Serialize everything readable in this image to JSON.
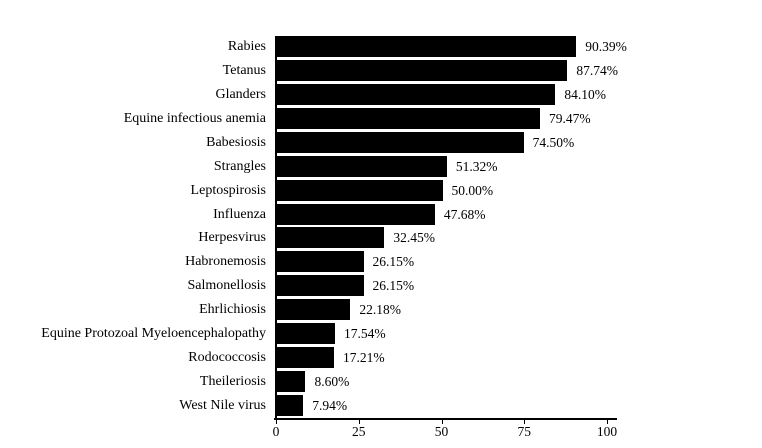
{
  "chart_data": {
    "type": "bar",
    "orientation": "horizontal",
    "title": "",
    "xlabel": "",
    "ylabel": "",
    "xlim": [
      0,
      100
    ],
    "x_ticks": [
      "0",
      "25",
      "50",
      "75",
      "100"
    ],
    "x_tick_values": [
      0,
      25,
      50,
      75,
      100
    ],
    "grid": false,
    "legend": false,
    "bar_color": "#000000",
    "background_color": "#ffffff",
    "text_color": "#000000",
    "categories": [
      "Rabies",
      "Tetanus",
      "Glanders",
      "Equine infectious anemia",
      "Babesiosis",
      "Strangles",
      "Leptospirosis",
      "Influenza",
      "Herpesvirus",
      "Habronemosis",
      "Salmonellosis",
      "Ehrlichiosis",
      "Equine Protozoal Myeloencephalopathy",
      "Rodococcosis",
      "Theileriosis",
      "West Nile virus"
    ],
    "values": [
      90.39,
      87.74,
      84.1,
      79.47,
      74.5,
      51.32,
      50.0,
      47.68,
      32.45,
      26.15,
      26.15,
      22.18,
      17.54,
      17.21,
      8.6,
      7.94
    ],
    "value_labels": [
      "90.39%",
      "87.74%",
      "84.10%",
      "79.47%",
      "74.50%",
      "51.32%",
      "50.00%",
      "47.68%",
      "32.45%",
      "26.15%",
      "26.15%",
      "22.18%",
      "17.54%",
      "17.21%",
      "8.60%",
      "7.94%"
    ]
  }
}
